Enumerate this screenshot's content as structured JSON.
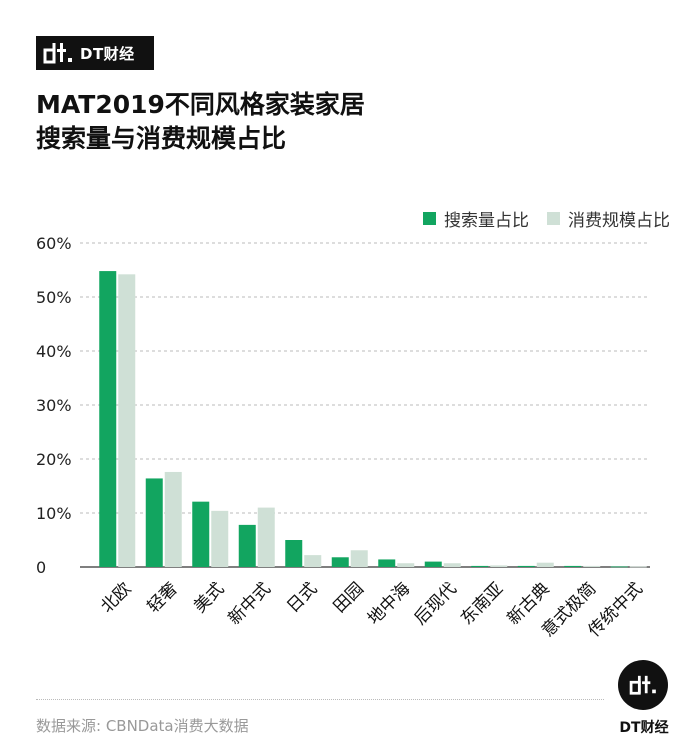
{
  "brand": {
    "name": "DT财经",
    "mark_icon": "dt-logo-icon"
  },
  "title_lines": [
    "MAT2019不同风格家装家居",
    "搜索量与消费规模占比"
  ],
  "source": "数据来源: CBNData消费大数据",
  "colors": {
    "series1": "#12a560",
    "series2": "#cfe0d6",
    "grid": "#bbbbbb",
    "axis": "#333333"
  },
  "chart_data": {
    "type": "bar",
    "categories": [
      "北欧",
      "轻奢",
      "美式",
      "新中式",
      "日式",
      "田园",
      "地中海",
      "后现代",
      "东南亚",
      "新古典",
      "意式极简",
      "传统中式"
    ],
    "series": [
      {
        "name": "搜索量占比",
        "values": [
          54.8,
          16.4,
          12.1,
          7.8,
          5.0,
          1.8,
          1.4,
          1.0,
          0.2,
          0.2,
          0.2,
          0.1
        ]
      },
      {
        "name": "消费规模占比",
        "values": [
          54.2,
          17.6,
          10.4,
          11.0,
          2.2,
          3.1,
          0.7,
          0.7,
          0.3,
          0.8,
          0.2,
          0.1
        ]
      }
    ],
    "yticks": [
      "0",
      "10%",
      "20%",
      "30%",
      "40%",
      "50%",
      "60%"
    ],
    "ylim": [
      0,
      60
    ],
    "grid": true,
    "legend_position": "top-right"
  }
}
